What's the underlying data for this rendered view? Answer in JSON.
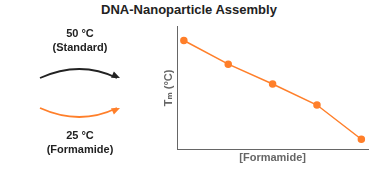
{
  "chart_data": {
    "type": "line",
    "title": "DNA-Nanoparticle Assembly",
    "x": [
      0,
      1,
      2,
      3,
      4
    ],
    "values": [
      4.0,
      3.1,
      2.35,
      1.55,
      0.25
    ],
    "color": "#FF7F2A",
    "marker": "circle",
    "xlabel": "[Formamide]",
    "ylabel": "Tₘ (°C)",
    "xlim": [
      -0.15,
      4.15
    ],
    "ylim": [
      -0.15,
      4.55
    ],
    "tick_labels": false,
    "grid": false,
    "annotations": [
      "50 °C",
      "(Standard)",
      "25 °C",
      "(Formamide)"
    ]
  }
}
